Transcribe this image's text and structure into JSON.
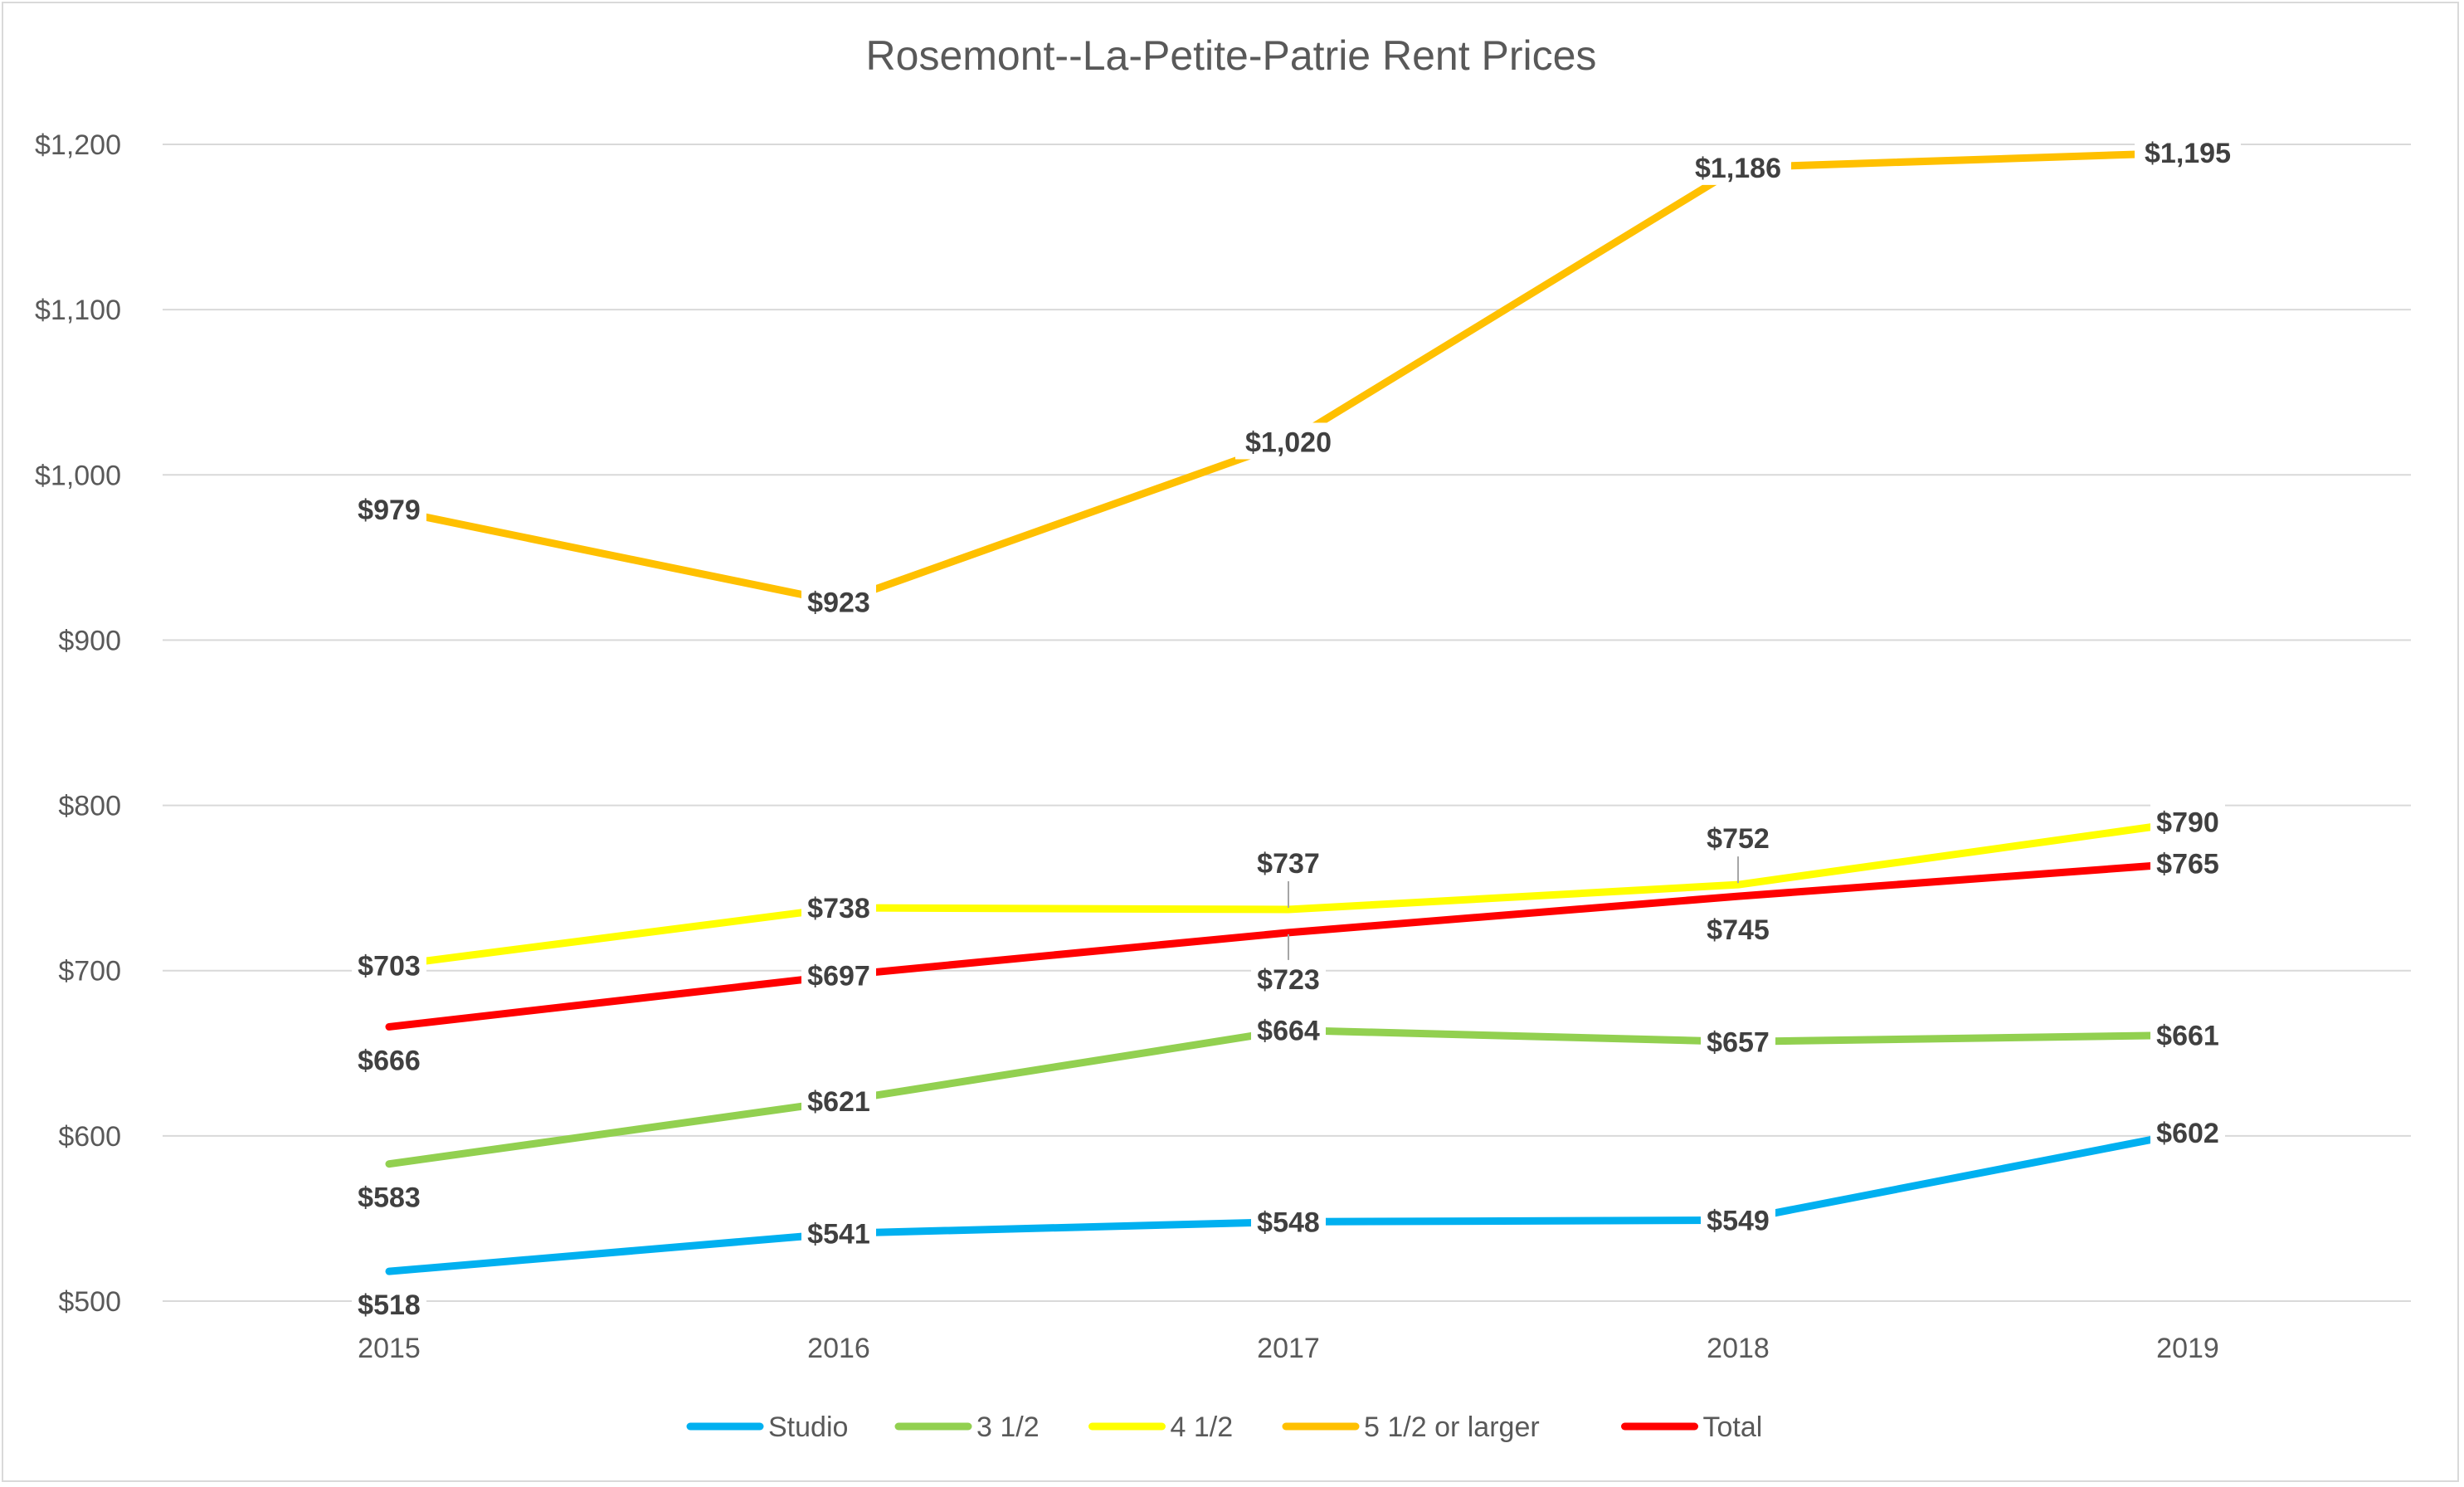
{
  "chart_data": {
    "type": "line",
    "title": "Rosemont--La-Petite-Patrie Rent Prices",
    "xlabel": "",
    "ylabel": "",
    "categories": [
      "2015",
      "2016",
      "2017",
      "2018",
      "2019"
    ],
    "ylim": [
      500,
      1200
    ],
    "yticks": [
      500,
      600,
      700,
      800,
      900,
      1000,
      1100,
      1200
    ],
    "ytick_labels": [
      "$500",
      "$600",
      "$700",
      "$800",
      "$900",
      "$1,000",
      "$1,100",
      "$1,200"
    ],
    "grid": true,
    "legend_position": "bottom",
    "series": [
      {
        "name": "Studio",
        "color": "#00b0f0",
        "values": [
          518,
          541,
          548,
          549,
          602
        ],
        "labels": [
          "$518",
          "$541",
          "$548",
          "$549",
          "$602"
        ],
        "label_pos": [
          "below",
          "center",
          "center",
          "center",
          "center"
        ]
      },
      {
        "name": "3 1/2",
        "color": "#92d050",
        "values": [
          583,
          621,
          664,
          657,
          661
        ],
        "labels": [
          "$583",
          "$621",
          "$664",
          "$657",
          "$661"
        ],
        "label_pos": [
          "below",
          "center",
          "center",
          "center",
          "center"
        ]
      },
      {
        "name": "4 1/2",
        "color": "#ffff00",
        "values": [
          703,
          738,
          737,
          752,
          790
        ],
        "labels": [
          "$703",
          "$738",
          "$737",
          "$752",
          "$790"
        ],
        "label_pos": [
          "center",
          "center",
          "above-leader",
          "above-leader",
          "center"
        ]
      },
      {
        "name": "5 1/2 or larger",
        "color": "#ffc000",
        "values": [
          979,
          923,
          1020,
          1186,
          1195
        ],
        "labels": [
          "$979",
          "$923",
          "$1,020",
          "$1,186",
          "$1,195"
        ],
        "label_pos": [
          "center",
          "center",
          "center",
          "center",
          "center"
        ]
      },
      {
        "name": "Total",
        "color": "#ff0000",
        "values": [
          666,
          697,
          723,
          745,
          765
        ],
        "labels": [
          "$666",
          "$697",
          "$723",
          "$745",
          "$765"
        ],
        "label_pos": [
          "below",
          "center",
          "below-leader",
          "below",
          "center"
        ]
      }
    ]
  }
}
